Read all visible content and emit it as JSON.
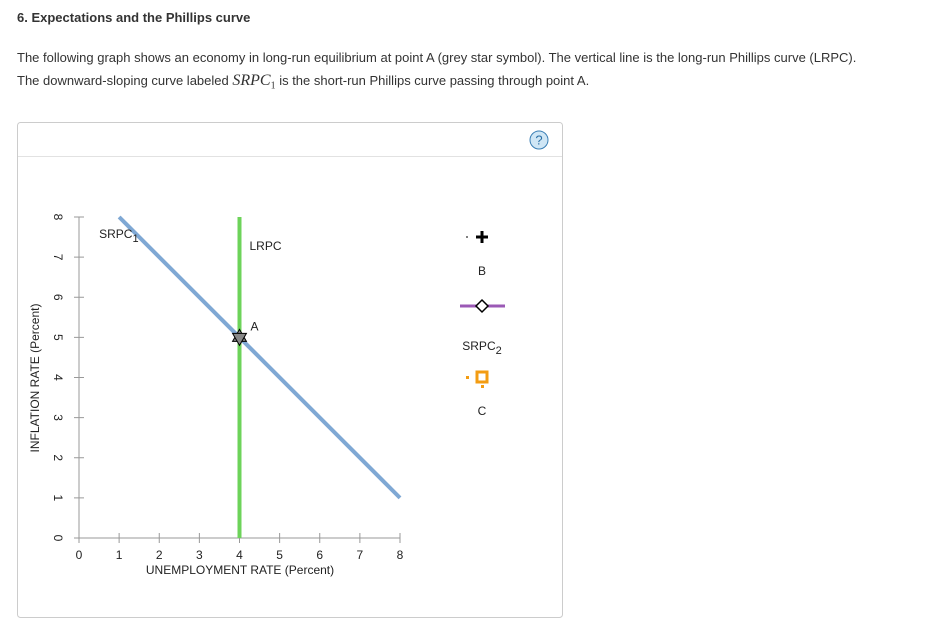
{
  "header": {
    "title": "6. Expectations and the Phillips curve",
    "line1": "The following graph shows an economy in long-run equilibrium at point A (grey star symbol). The vertical line is the long-run Phillips curve (LRPC).",
    "line2_before": "The downward-sloping curve labeled ",
    "srpc_symbol": "SRPC",
    "srpc_sub": "1",
    "line2_after": " is the short-run Phillips curve passing through point A."
  },
  "help": "?",
  "chart_data": {
    "type": "line",
    "xlabel": "UNEMPLOYMENT RATE (Percent)",
    "ylabel": "INFLATION RATE (Percent)",
    "xlim": [
      0,
      8
    ],
    "ylim": [
      0,
      8
    ],
    "xticks": [
      0,
      1,
      2,
      3,
      4,
      5,
      6,
      7,
      8
    ],
    "yticks": [
      0,
      1,
      2,
      3,
      4,
      5,
      6,
      7,
      8
    ],
    "series": [
      {
        "name": "SRPC",
        "subscript": "1",
        "color": "#7fa8d4",
        "x": [
          1,
          8
        ],
        "values": [
          8,
          1
        ]
      },
      {
        "name": "LRPC",
        "color": "#6dd35a",
        "x": [
          4,
          4
        ],
        "values": [
          0,
          8
        ]
      }
    ],
    "points": [
      {
        "name": "A",
        "x": 4,
        "y": 5,
        "color": "#888888"
      }
    ]
  },
  "palette": [
    {
      "label": "B"
    },
    {
      "label": "SRPC",
      "subscript": "2"
    },
    {
      "label": "C"
    }
  ]
}
